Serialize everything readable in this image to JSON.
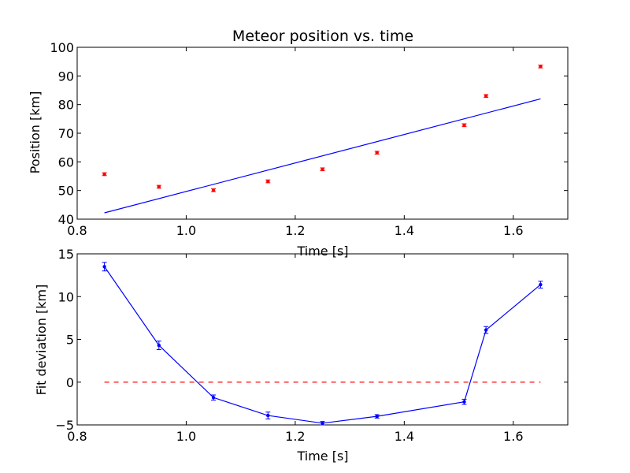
{
  "chart_data": [
    {
      "type": "scatter",
      "title": "Meteor position vs. time",
      "xlabel": "Time [s]",
      "ylabel": "Position [km]",
      "xlim": [
        0.8,
        1.7
      ],
      "ylim": [
        40,
        100
      ],
      "xticks": [
        "0.8",
        "1.0",
        "1.2",
        "1.4",
        "1.6"
      ],
      "yticks": [
        "40",
        "50",
        "60",
        "70",
        "80",
        "90",
        "100"
      ],
      "xtick_values": [
        0.8,
        1.0,
        1.2,
        1.4,
        1.6
      ],
      "ytick_values": [
        40,
        50,
        60,
        70,
        80,
        90,
        100
      ],
      "grid": false,
      "series": [
        {
          "kind": "points-with-errorbars",
          "color": "#ff0000",
          "x": [
            0.85,
            0.95,
            1.05,
            1.15,
            1.25,
            1.35,
            1.51,
            1.55,
            1.65
          ],
          "y": [
            55.7,
            51.3,
            50.1,
            53.2,
            57.4,
            63.2,
            72.8,
            83.0,
            93.3
          ],
          "yerr": [
            0.5,
            0.5,
            0.5,
            0.5,
            0.5,
            0.5,
            0.5,
            0.5,
            0.5
          ]
        },
        {
          "kind": "line",
          "color": "#0000ff",
          "x": [
            0.85,
            1.65
          ],
          "y": [
            42.2,
            82.0
          ]
        }
      ]
    },
    {
      "type": "line",
      "title": "",
      "xlabel": "Time [s]",
      "ylabel": "Fit deviation [km]",
      "xlim": [
        0.8,
        1.7
      ],
      "ylim": [
        -5,
        15
      ],
      "xticks": [
        "0.8",
        "1.0",
        "1.2",
        "1.4",
        "1.6"
      ],
      "yticks": [
        "−5",
        "0",
        "5",
        "10",
        "15"
      ],
      "xtick_values": [
        0.8,
        1.0,
        1.2,
        1.4,
        1.6
      ],
      "ytick_values": [
        -5,
        0,
        5,
        10,
        15
      ],
      "grid": false,
      "series": [
        {
          "kind": "line-points-with-errorbars",
          "color": "#0000ff",
          "x": [
            0.85,
            0.95,
            1.05,
            1.15,
            1.25,
            1.35,
            1.51,
            1.55,
            1.65
          ],
          "y": [
            13.5,
            4.3,
            -1.8,
            -3.9,
            -4.8,
            -4.0,
            -2.3,
            6.1,
            11.4
          ],
          "yerr": [
            0.5,
            0.5,
            0.3,
            0.4,
            0.2,
            0.2,
            0.3,
            0.4,
            0.4
          ]
        },
        {
          "kind": "dashed-line",
          "color": "#ff0000",
          "x": [
            0.85,
            1.65
          ],
          "y": [
            0,
            0
          ]
        }
      ]
    }
  ]
}
